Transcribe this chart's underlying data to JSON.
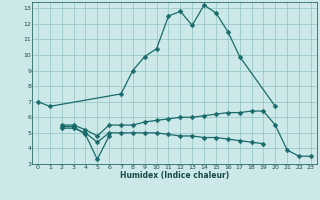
{
  "xlabel": "Humidex (Indice chaleur)",
  "bg_color": "#cce8e8",
  "grid_color": "#9dc8c8",
  "line_color": "#1a6b6b",
  "xlim": [
    -0.5,
    23.5
  ],
  "ylim": [
    3,
    13.4
  ],
  "xticks": [
    0,
    1,
    2,
    3,
    4,
    5,
    6,
    7,
    8,
    9,
    10,
    11,
    12,
    13,
    14,
    15,
    16,
    17,
    18,
    19,
    20,
    21,
    22,
    23
  ],
  "yticks": [
    3,
    4,
    5,
    6,
    7,
    8,
    9,
    10,
    11,
    12,
    13
  ],
  "line1_x": [
    0,
    1,
    7,
    8,
    9,
    10,
    11,
    12,
    13,
    14,
    15,
    16,
    17,
    20
  ],
  "line1_y": [
    7.0,
    6.7,
    7.5,
    9.0,
    9.9,
    10.4,
    12.5,
    12.8,
    11.9,
    13.2,
    12.7,
    11.5,
    9.9,
    6.7
  ],
  "line2_x": [
    2,
    3,
    4,
    5,
    6
  ],
  "line2_y": [
    5.4,
    5.4,
    4.9,
    3.3,
    4.8
  ],
  "line3_x": [
    2,
    3,
    4,
    5,
    6,
    7,
    8,
    9,
    10,
    11,
    12,
    13,
    14,
    15,
    16,
    17,
    18,
    19,
    20,
    21,
    22,
    23
  ],
  "line3_y": [
    5.5,
    5.5,
    5.2,
    4.8,
    5.5,
    5.5,
    5.5,
    5.7,
    5.8,
    5.9,
    6.0,
    6.0,
    6.1,
    6.2,
    6.3,
    6.3,
    6.4,
    6.4,
    5.5,
    3.9,
    3.5,
    3.5
  ],
  "line4_x": [
    2,
    3,
    4,
    5,
    6,
    7,
    8,
    9,
    10,
    11,
    12,
    13,
    14,
    15,
    16,
    17,
    18,
    19
  ],
  "line4_y": [
    5.3,
    5.3,
    5.0,
    4.4,
    5.0,
    5.0,
    5.0,
    5.0,
    5.0,
    4.9,
    4.8,
    4.8,
    4.7,
    4.7,
    4.6,
    4.5,
    4.4,
    4.3
  ]
}
